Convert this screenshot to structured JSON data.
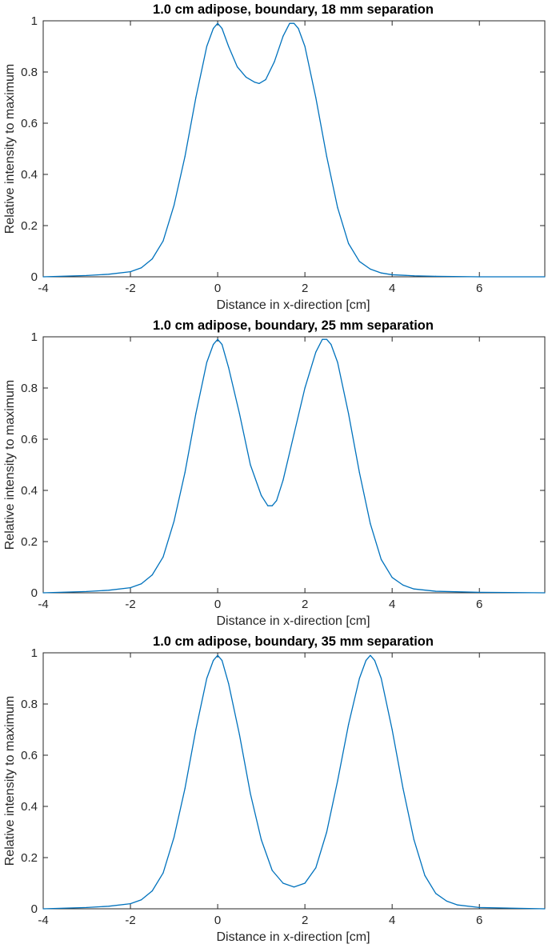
{
  "chart_data": [
    {
      "type": "line",
      "title": "1.0 cm adipose, boundary, 18 mm separation",
      "xlabel": "Distance in x-direction [cm]",
      "ylabel": "Relative intensity to maximum",
      "xlim": [
        -4,
        7.5
      ],
      "ylim": [
        0,
        1
      ],
      "xticks": [
        -4,
        -2,
        0,
        2,
        4,
        6
      ],
      "yticks": [
        0,
        0.2,
        0.4,
        0.6,
        0.8,
        1
      ],
      "xtick_labels": [
        "-4",
        "-2",
        "0",
        "2",
        "4",
        "6"
      ],
      "ytick_labels": [
        "0",
        "0.2",
        "0.4",
        "0.6",
        "0.8",
        "1"
      ],
      "grid": false,
      "series": [
        {
          "color": "#0072BD",
          "x": [
            -4.0,
            -3.0,
            -2.5,
            -2.0,
            -1.75,
            -1.5,
            -1.25,
            -1.0,
            -0.75,
            -0.5,
            -0.25,
            -0.1,
            0.0,
            0.1,
            0.25,
            0.45,
            0.65,
            0.85,
            0.95,
            1.1,
            1.3,
            1.5,
            1.65,
            1.75,
            1.85,
            2.0,
            2.25,
            2.5,
            2.75,
            3.0,
            3.25,
            3.5,
            3.75,
            4.0,
            4.5,
            5.0,
            6.0,
            7.5
          ],
          "y": [
            0.0,
            0.005,
            0.01,
            0.02,
            0.035,
            0.07,
            0.14,
            0.28,
            0.47,
            0.7,
            0.9,
            0.97,
            0.99,
            0.97,
            0.9,
            0.82,
            0.78,
            0.76,
            0.755,
            0.77,
            0.84,
            0.94,
            0.99,
            0.99,
            0.97,
            0.9,
            0.7,
            0.47,
            0.27,
            0.13,
            0.06,
            0.03,
            0.015,
            0.008,
            0.004,
            0.002,
            0.0,
            0.0
          ]
        }
      ]
    },
    {
      "type": "line",
      "title": "1.0 cm adipose, boundary, 25 mm separation",
      "xlabel": "Distance in x-direction [cm]",
      "ylabel": "Relative intensity to maximum",
      "xlim": [
        -4,
        7.5
      ],
      "ylim": [
        0,
        1
      ],
      "xticks": [
        -4,
        -2,
        0,
        2,
        4,
        6
      ],
      "yticks": [
        0,
        0.2,
        0.4,
        0.6,
        0.8,
        1
      ],
      "xtick_labels": [
        "-4",
        "-2",
        "0",
        "2",
        "4",
        "6"
      ],
      "ytick_labels": [
        "0",
        "0.2",
        "0.4",
        "0.6",
        "0.8",
        "1"
      ],
      "grid": false,
      "series": [
        {
          "color": "#0072BD",
          "x": [
            -4.0,
            -3.0,
            -2.5,
            -2.0,
            -1.75,
            -1.5,
            -1.25,
            -1.0,
            -0.75,
            -0.5,
            -0.25,
            -0.1,
            0.0,
            0.1,
            0.25,
            0.5,
            0.75,
            1.0,
            1.15,
            1.25,
            1.35,
            1.5,
            1.75,
            2.0,
            2.25,
            2.4,
            2.5,
            2.6,
            2.75,
            3.0,
            3.25,
            3.5,
            3.75,
            4.0,
            4.25,
            4.5,
            5.0,
            6.0,
            7.5
          ],
          "y": [
            0.0,
            0.005,
            0.01,
            0.02,
            0.035,
            0.07,
            0.14,
            0.28,
            0.47,
            0.7,
            0.9,
            0.97,
            0.99,
            0.97,
            0.88,
            0.7,
            0.5,
            0.38,
            0.34,
            0.34,
            0.36,
            0.44,
            0.62,
            0.8,
            0.94,
            0.99,
            0.99,
            0.97,
            0.9,
            0.7,
            0.47,
            0.27,
            0.13,
            0.06,
            0.03,
            0.015,
            0.006,
            0.002,
            0.0
          ]
        }
      ]
    },
    {
      "type": "line",
      "title": "1.0 cm adipose, boundary, 35 mm separation",
      "xlabel": "Distance in x-direction [cm]",
      "ylabel": "Relative intensity to maximum",
      "xlim": [
        -4,
        7.5
      ],
      "ylim": [
        0,
        1
      ],
      "xticks": [
        -4,
        -2,
        0,
        2,
        4,
        6
      ],
      "yticks": [
        0,
        0.2,
        0.4,
        0.6,
        0.8,
        1
      ],
      "xtick_labels": [
        "-4",
        "-2",
        "0",
        "2",
        "4",
        "6"
      ],
      "ytick_labels": [
        "0",
        "0.2",
        "0.4",
        "0.6",
        "0.8",
        "1"
      ],
      "grid": false,
      "series": [
        {
          "color": "#0072BD",
          "x": [
            -4.0,
            -3.0,
            -2.5,
            -2.0,
            -1.75,
            -1.5,
            -1.25,
            -1.0,
            -0.75,
            -0.5,
            -0.25,
            -0.1,
            0.0,
            0.1,
            0.25,
            0.5,
            0.75,
            1.0,
            1.25,
            1.5,
            1.75,
            2.0,
            2.25,
            2.5,
            2.75,
            3.0,
            3.25,
            3.4,
            3.5,
            3.6,
            3.75,
            4.0,
            4.25,
            4.5,
            4.75,
            5.0,
            5.25,
            5.5,
            6.0,
            7.5
          ],
          "y": [
            0.0,
            0.005,
            0.01,
            0.02,
            0.035,
            0.07,
            0.14,
            0.28,
            0.47,
            0.7,
            0.9,
            0.97,
            0.99,
            0.97,
            0.88,
            0.68,
            0.45,
            0.27,
            0.15,
            0.1,
            0.085,
            0.1,
            0.16,
            0.3,
            0.5,
            0.72,
            0.9,
            0.97,
            0.99,
            0.97,
            0.9,
            0.7,
            0.47,
            0.27,
            0.13,
            0.06,
            0.03,
            0.015,
            0.005,
            0.0
          ]
        }
      ]
    }
  ]
}
